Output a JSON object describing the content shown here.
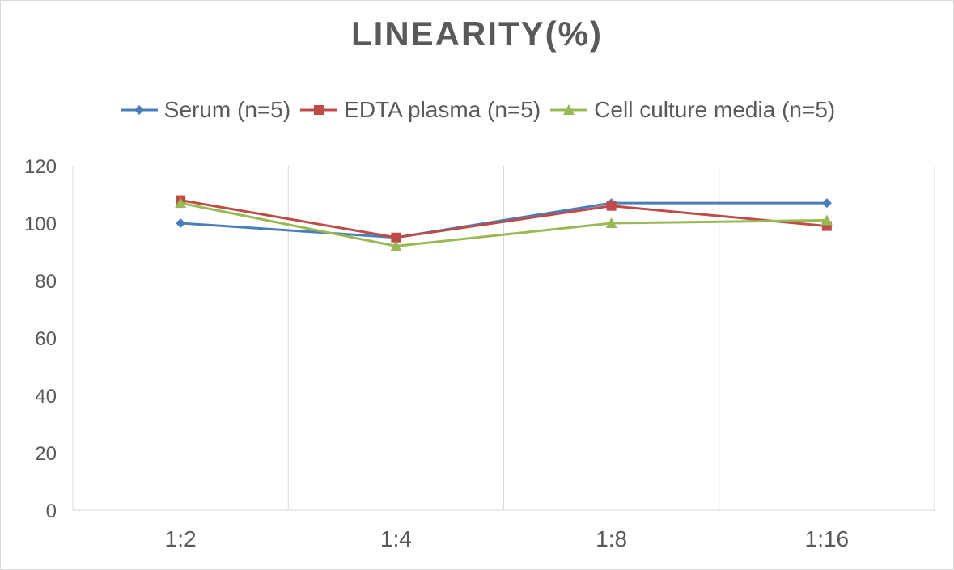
{
  "colors": {
    "serum": "#4a7ebb",
    "edta": "#be4b48",
    "cell": "#98b954",
    "grid": "#d9d9d9",
    "text": "#595959"
  },
  "chart_data": {
    "type": "line",
    "title": "LINEARITY(%)",
    "categories": [
      "1:2",
      "1:4",
      "1:8",
      "1:16"
    ],
    "ylim": [
      0,
      120
    ],
    "yticks": [
      0,
      20,
      40,
      60,
      80,
      100,
      120
    ],
    "grid": "vertical",
    "legend_position": "top",
    "series": [
      {
        "name": "Serum (n=5)",
        "marker": "diamond",
        "color": "#4a7ebb",
        "values": [
          100,
          95,
          107,
          107
        ]
      },
      {
        "name": "EDTA plasma (n=5)",
        "marker": "square",
        "color": "#be4b48",
        "values": [
          108,
          95,
          106,
          99
        ]
      },
      {
        "name": "Cell culture media (n=5)",
        "marker": "triangle",
        "color": "#98b954",
        "values": [
          107,
          92,
          100,
          101
        ]
      }
    ]
  }
}
